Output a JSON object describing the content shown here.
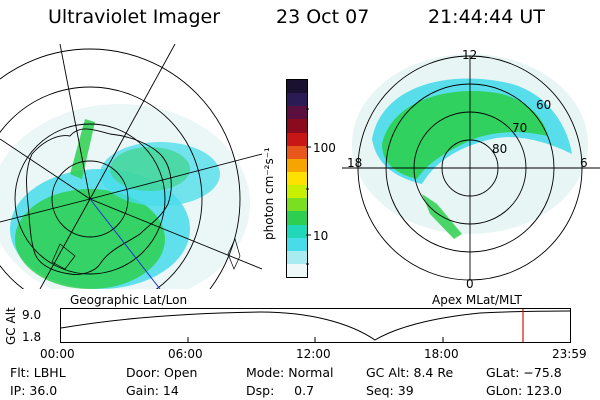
{
  "header": {
    "instrument": "Ultraviolet Imager",
    "date": "23 Oct 07",
    "time": "21:44:44 UT"
  },
  "left_map": {
    "label": "Geographic Lat/Lon"
  },
  "colorbar": {
    "unit_label": "photon cm⁻²s⁻¹",
    "ticks": [
      "100",
      "10"
    ],
    "colors": [
      "#1a1030",
      "#2a1a55",
      "#5a0f40",
      "#8a0a1e",
      "#c81616",
      "#e8581c",
      "#f5a400",
      "#ffe100",
      "#c8f000",
      "#7adf20",
      "#2ecf50",
      "#20d8b8",
      "#48dcea",
      "#a8ecf2",
      "#eef8f8"
    ]
  },
  "right_map": {
    "label": "Apex MLat/MLT",
    "mlt_labels": {
      "top": "12",
      "bottom": "0",
      "left": "18",
      "right": "6"
    },
    "lat_labels": [
      "60",
      "70",
      "80"
    ]
  },
  "altitude_plot": {
    "ylabel": "GC Alt",
    "yticks": [
      "9.0",
      "1.8"
    ],
    "xticks": [
      "00:00",
      "06:00",
      "12:00",
      "18:00",
      "23:59"
    ]
  },
  "footer": {
    "row1": [
      {
        "key": "filter",
        "text": "Flt: LBHL"
      },
      {
        "key": "door",
        "text": "Door: Open"
      },
      {
        "key": "mode",
        "text": "Mode: Normal"
      },
      {
        "key": "gc_alt",
        "text": "GC Alt: 8.4 Re"
      },
      {
        "key": "glat",
        "text": "GLat: −75.8"
      }
    ],
    "row2": [
      {
        "key": "ip",
        "text": "IP: 36.0"
      },
      {
        "key": "gain",
        "text": "Gain: 14"
      },
      {
        "key": "dsp",
        "text": "Dsp:     0.7"
      },
      {
        "key": "seq",
        "text": "Seq: 39"
      },
      {
        "key": "glon",
        "text": "GLon: 123.0"
      }
    ]
  }
}
